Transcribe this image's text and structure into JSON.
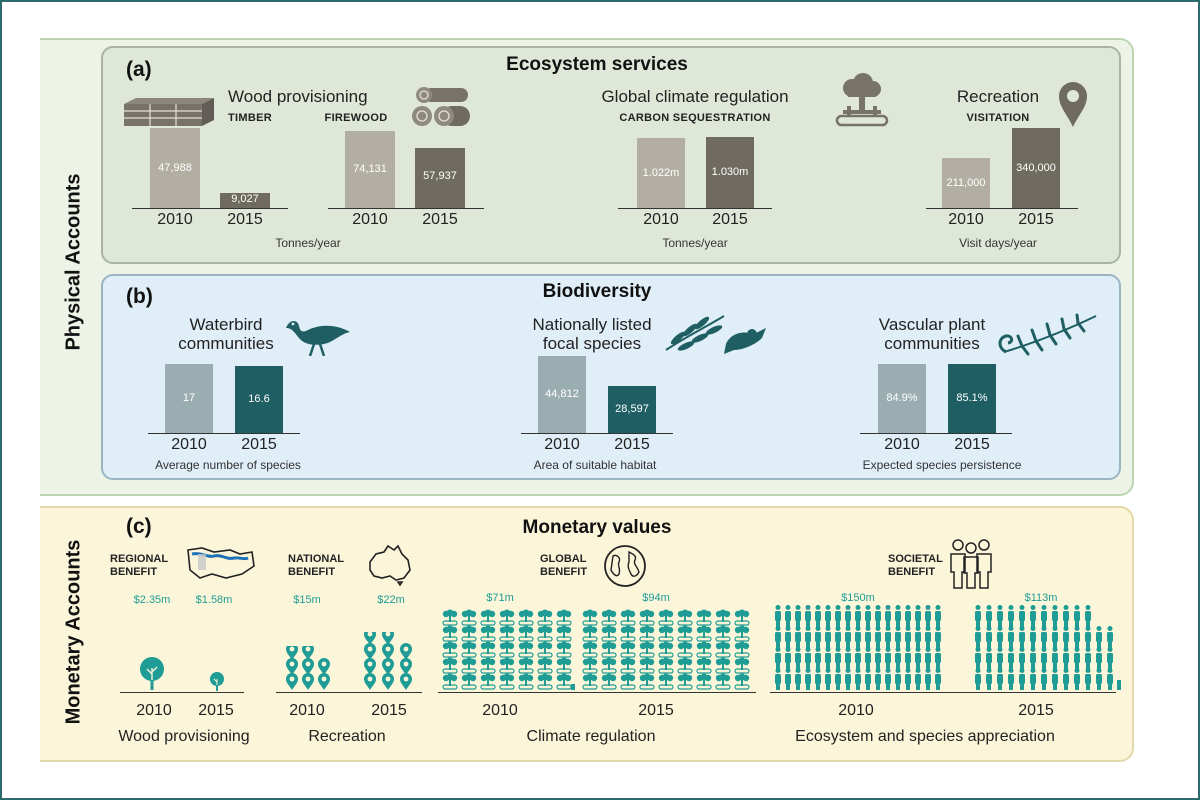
{
  "side_labels": {
    "physical": "Physical Accounts",
    "monetary": "Monetary Accounts"
  },
  "colors": {
    "frame": "#2b6b6e",
    "es_bg": "#dfe8d8",
    "bio_bg": "#e0eef8",
    "mon_bg": "#fbf6da",
    "es_2010": "#b3aea3",
    "es_2015": "#6f6b61",
    "bio_2010": "#9aaeb1",
    "bio_2015": "#1f5f63",
    "teal": "#1e9c95"
  },
  "ecosystem": {
    "label": "(a)",
    "title": "Ecosystem services",
    "wood": {
      "title": "Wood provisioning",
      "timber": "TIMBER",
      "firewood": "FIREWOOD",
      "unit": "Tonnes/year"
    },
    "climate": {
      "title": "Global climate regulation",
      "sub": "CARBON SEQUESTRATION",
      "unit": "Tonnes/year"
    },
    "recreation": {
      "title": "Recreation",
      "sub": "VISITATION",
      "unit": "Visit days/year"
    }
  },
  "biodiversity": {
    "label": "(b)",
    "title": "Biodiversity",
    "waterbird": {
      "title1": "Waterbird",
      "title2": "communities",
      "unit": "Average number of species"
    },
    "focal": {
      "title1": "Nationally listed",
      "title2": "focal species",
      "unit": "Area of suitable habitat"
    },
    "vascular": {
      "title1": "Vascular plant",
      "title2": "communities",
      "unit": "Expected species persistence"
    }
  },
  "monetary": {
    "label": "(c)",
    "title": "Monetary values",
    "regional": {
      "line1": "REGIONAL",
      "line2": "BENEFIT",
      "v2010": "$2.35m",
      "v2015": "$1.58m",
      "caption": "Wood provisioning"
    },
    "national": {
      "line1": "NATIONAL",
      "line2": "BENEFIT",
      "v2010": "$15m",
      "v2015": "$22m",
      "caption": "Recreation"
    },
    "global": {
      "line1": "GLOBAL",
      "line2": "BENEFIT",
      "v2010": "$71m",
      "v2015": "$94m",
      "caption": "Climate regulation"
    },
    "societal": {
      "line1": "SOCIETAL",
      "line2": "BENEFIT",
      "v2010": "$150m",
      "v2015": "$113m",
      "caption": "Ecosystem and species appreciation"
    }
  },
  "chart_data": [
    {
      "type": "bar",
      "title": "Wood provisioning — TIMBER",
      "categories": [
        "2010",
        "2015"
      ],
      "values": [
        47988,
        9027
      ],
      "value_labels": [
        "47,988",
        "9,027"
      ],
      "ylabel": "Tonnes/year"
    },
    {
      "type": "bar",
      "title": "Wood provisioning — FIREWOOD",
      "categories": [
        "2010",
        "2015"
      ],
      "values": [
        74131,
        57937
      ],
      "value_labels": [
        "74,131",
        "57,937"
      ],
      "ylabel": "Tonnes/year"
    },
    {
      "type": "bar",
      "title": "Global climate regulation — CARBON SEQUESTRATION",
      "categories": [
        "2010",
        "2015"
      ],
      "values": [
        1022000,
        1030000
      ],
      "value_labels": [
        "1.022m",
        "1.030m"
      ],
      "ylabel": "Tonnes/year"
    },
    {
      "type": "bar",
      "title": "Recreation — VISITATION",
      "categories": [
        "2010",
        "2015"
      ],
      "values": [
        211000,
        340000
      ],
      "value_labels": [
        "211,000",
        "340,000"
      ],
      "ylabel": "Visit days/year"
    },
    {
      "type": "bar",
      "title": "Waterbird communities",
      "categories": [
        "2010",
        "2015"
      ],
      "values": [
        17,
        16.6
      ],
      "value_labels": [
        "17",
        "16.6"
      ],
      "ylabel": "Average number of species"
    },
    {
      "type": "bar",
      "title": "Nationally listed focal species",
      "categories": [
        "2010",
        "2015"
      ],
      "values": [
        44812,
        28597
      ],
      "value_labels": [
        "44,812",
        "28,597"
      ],
      "ylabel": "Area of suitable habitat"
    },
    {
      "type": "bar",
      "title": "Vascular plant communities",
      "categories": [
        "2010",
        "2015"
      ],
      "values": [
        84.9,
        85.1
      ],
      "value_labels": [
        "84.9%",
        "85.1%"
      ],
      "ylabel": "Expected species persistence"
    },
    {
      "type": "bar",
      "title": "Wood provisioning",
      "categories": [
        "2010",
        "2015"
      ],
      "values": [
        2.35,
        1.58
      ],
      "value_labels": [
        "$2.35m",
        "$1.58m"
      ]
    },
    {
      "type": "bar",
      "title": "Recreation",
      "categories": [
        "2010",
        "2015"
      ],
      "values": [
        15,
        22
      ],
      "value_labels": [
        "$15m",
        "$22m"
      ]
    },
    {
      "type": "bar",
      "title": "Climate regulation",
      "categories": [
        "2010",
        "2015"
      ],
      "values": [
        71,
        94
      ],
      "value_labels": [
        "$71m",
        "$94m"
      ]
    },
    {
      "type": "bar",
      "title": "Ecosystem and species appreciation",
      "categories": [
        "2010",
        "2015"
      ],
      "values": [
        150,
        113
      ],
      "value_labels": [
        "$150m",
        "$113m"
      ]
    }
  ]
}
